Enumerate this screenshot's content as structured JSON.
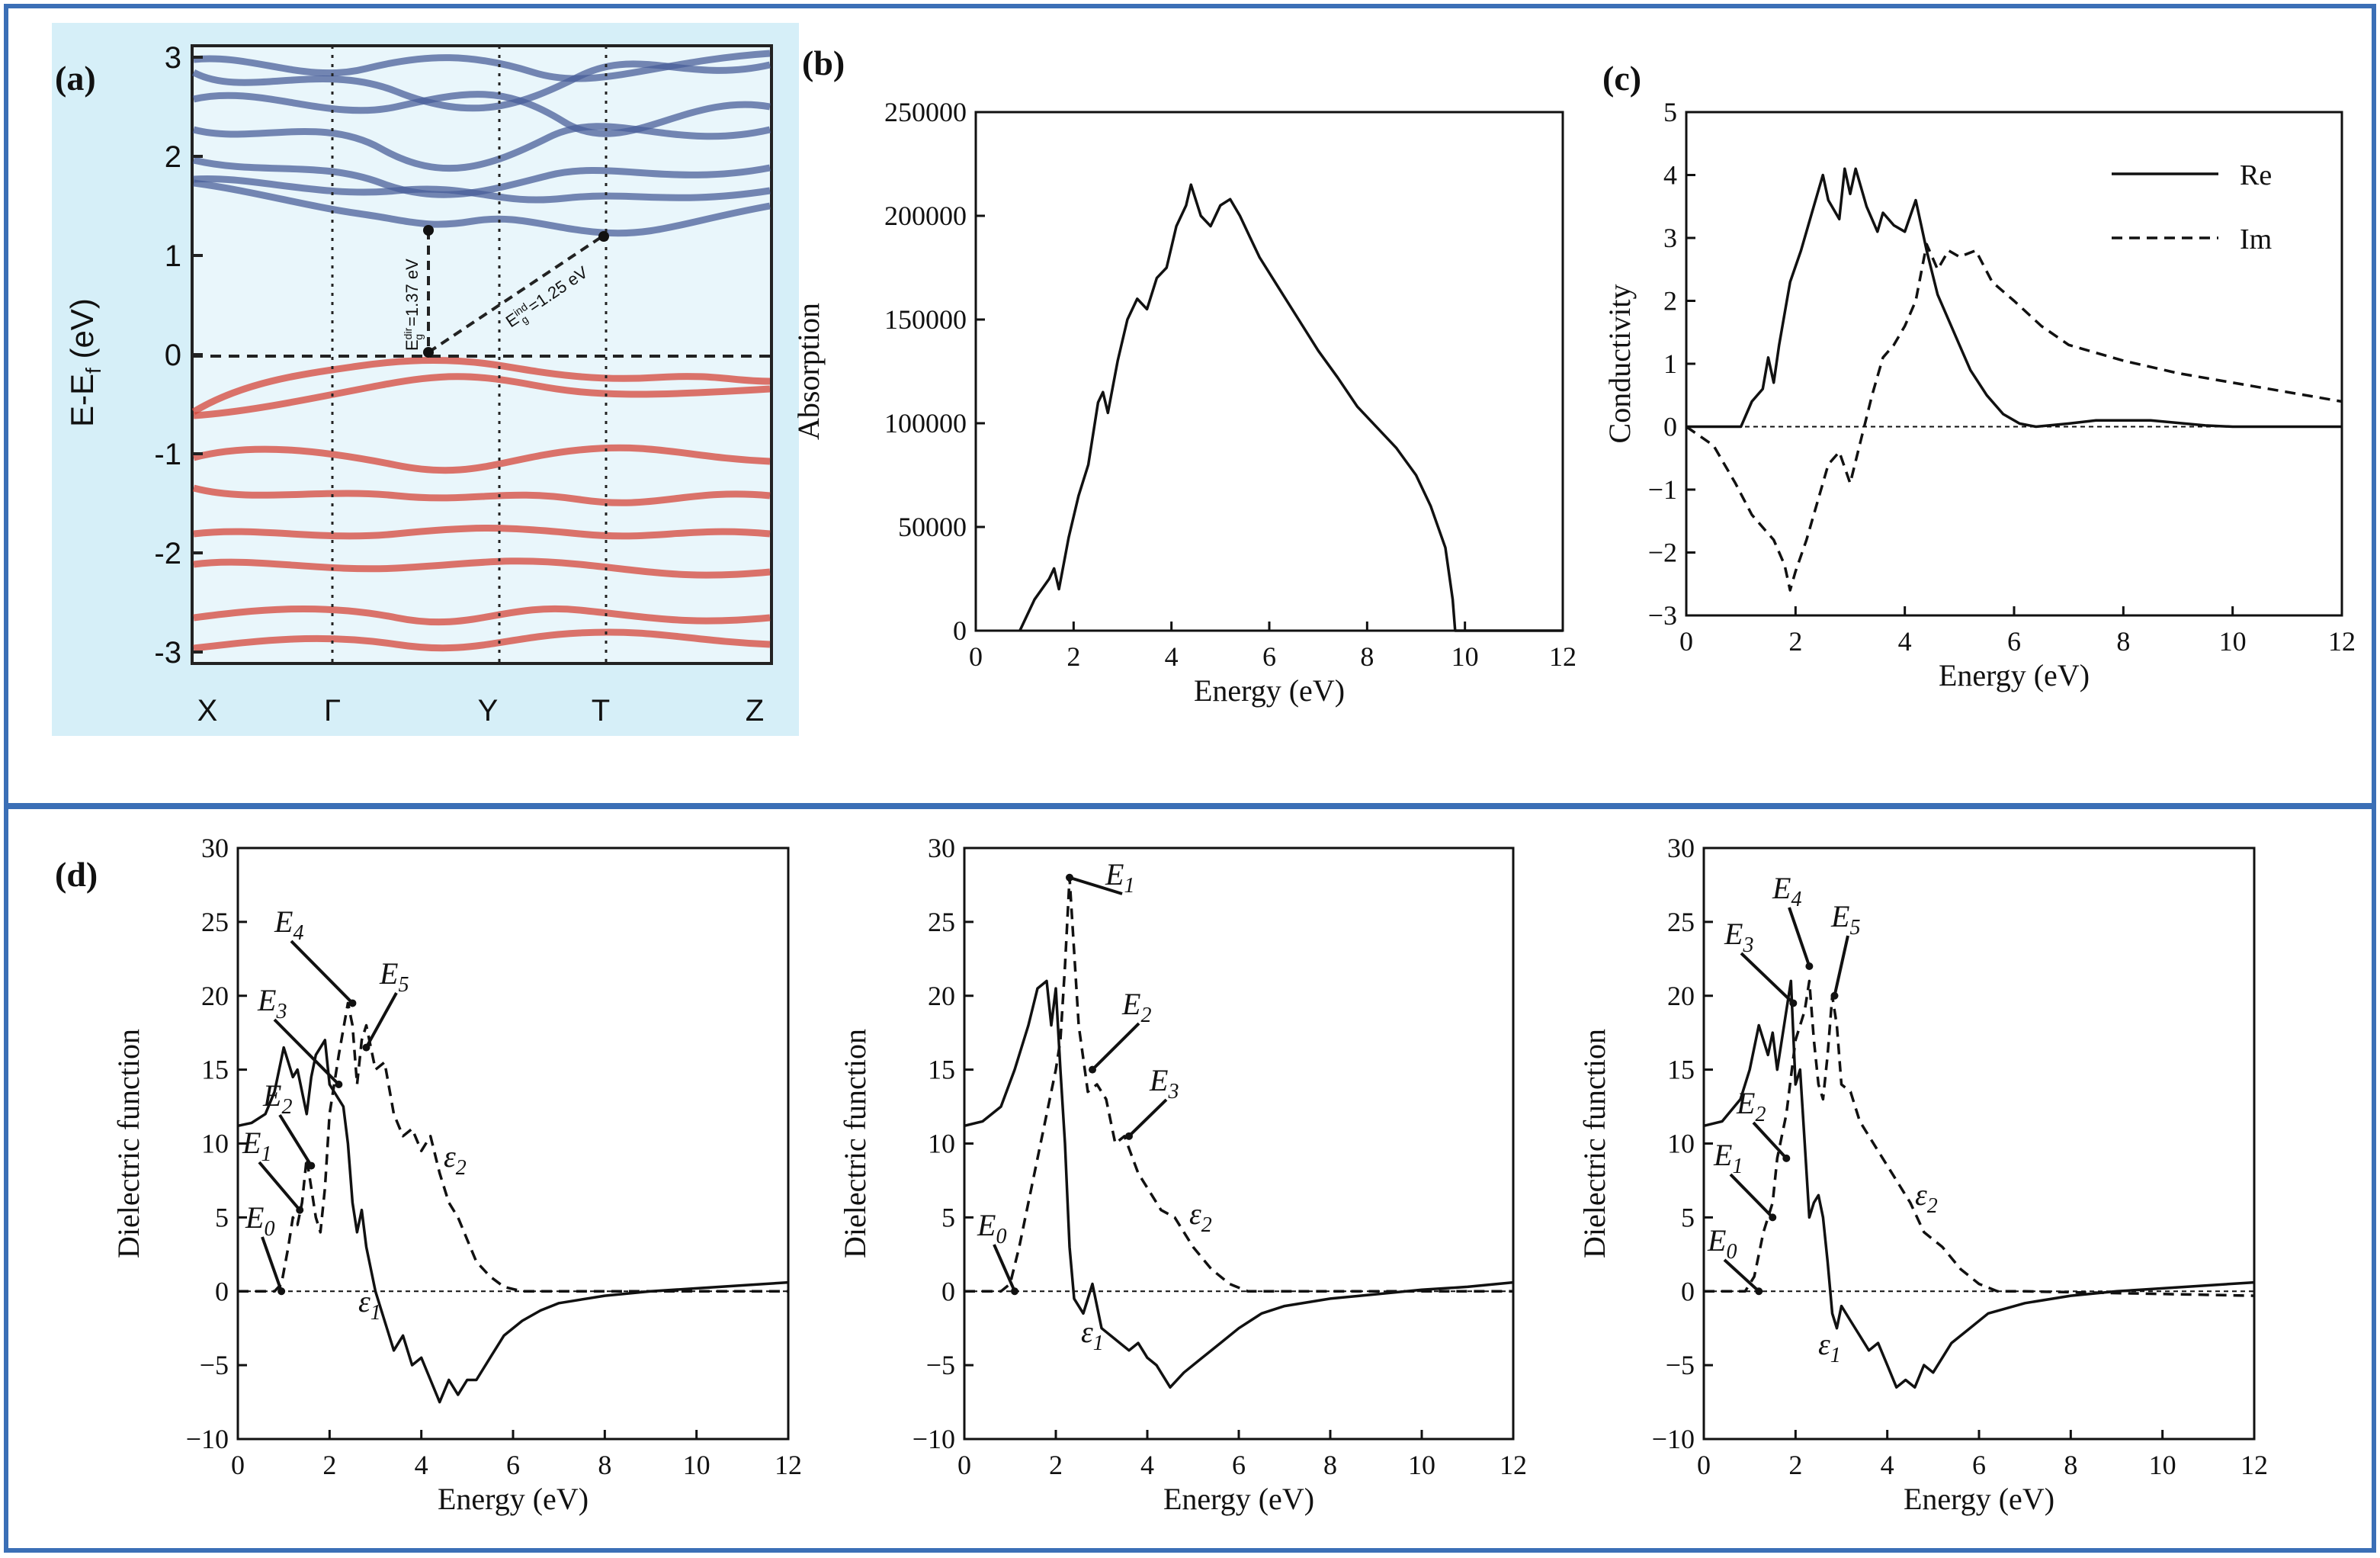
{
  "labels": {
    "a": "(a)",
    "b": "(b)",
    "c": "(c)",
    "d": "(d)"
  },
  "colors": {
    "frame": "#3b6fb6",
    "band_bg": "#d6eff8",
    "conduction": "#4a5f9a",
    "valence": "#d4453a",
    "line": "#111111"
  },
  "band_structure": {
    "ylabel": "E-E_f (eV)",
    "ylabel_main": "E-E",
    "ylabel_sub": "f",
    "ylabel_tail": " (eV)",
    "yticks": [
      "3",
      "2",
      "1",
      "0",
      "-1",
      "-2",
      "-3"
    ],
    "kpoints": [
      "X",
      "Γ",
      "Y",
      "T",
      "Z"
    ],
    "gap_direct": "E",
    "gap_direct_sup": "dir",
    "gap_direct_sub": "g",
    "gap_direct_val": "=1.37 eV",
    "gap_indirect": "E",
    "gap_indirect_sup": "ind",
    "gap_indirect_sub": "g",
    "gap_indirect_val": "=1.25 eV"
  },
  "chart_data": [
    {
      "id": "b",
      "type": "line",
      "xlabel": "Energy (eV)",
      "ylabel": "Absorption",
      "xlim": [
        0,
        12
      ],
      "ylim": [
        0,
        250000
      ],
      "xticks": [
        0,
        2,
        4,
        6,
        8,
        10,
        12
      ],
      "yticks": [
        0,
        50000,
        100000,
        150000,
        200000,
        250000
      ],
      "series": [
        {
          "name": "Absorption",
          "style": "solid",
          "x": [
            0.9,
            1.2,
            1.5,
            1.6,
            1.7,
            1.9,
            2.1,
            2.3,
            2.5,
            2.6,
            2.7,
            2.9,
            3.1,
            3.3,
            3.5,
            3.7,
            3.9,
            4.1,
            4.3,
            4.4,
            4.6,
            4.8,
            5.0,
            5.2,
            5.4,
            5.6,
            5.8,
            6.2,
            6.6,
            7.0,
            7.4,
            7.8,
            8.2,
            8.6,
            9.0,
            9.3,
            9.6,
            9.75,
            9.8,
            12.0
          ],
          "y": [
            0,
            15000,
            25000,
            30000,
            20000,
            45000,
            65000,
            80000,
            110000,
            115000,
            105000,
            130000,
            150000,
            160000,
            155000,
            170000,
            175000,
            195000,
            205000,
            215000,
            200000,
            195000,
            205000,
            208000,
            200000,
            190000,
            180000,
            165000,
            150000,
            135000,
            122000,
            108000,
            98000,
            88000,
            75000,
            60000,
            40000,
            15000,
            0,
            0
          ]
        }
      ]
    },
    {
      "id": "c",
      "type": "line",
      "xlabel": "Energy (eV)",
      "ylabel": "Conductivity",
      "xlim": [
        0,
        12
      ],
      "ylim": [
        -3,
        5
      ],
      "xticks": [
        0,
        2,
        4,
        6,
        8,
        10,
        12
      ],
      "yticks": [
        -3,
        -2,
        -1,
        0,
        1,
        2,
        3,
        4,
        5
      ],
      "legend": [
        "Re",
        "Im"
      ],
      "series": [
        {
          "name": "Re",
          "style": "solid",
          "x": [
            0,
            1.0,
            1.2,
            1.4,
            1.5,
            1.6,
            1.7,
            1.9,
            2.1,
            2.3,
            2.5,
            2.6,
            2.8,
            2.9,
            3.0,
            3.1,
            3.3,
            3.5,
            3.6,
            3.8,
            4.0,
            4.2,
            4.3,
            4.4,
            4.6,
            4.8,
            5.0,
            5.2,
            5.5,
            5.8,
            6.1,
            6.4,
            7.0,
            7.5,
            8.5,
            9.5,
            10,
            12
          ],
          "y": [
            0,
            0,
            0.4,
            0.6,
            1.1,
            0.7,
            1.3,
            2.3,
            2.8,
            3.4,
            4.0,
            3.6,
            3.3,
            4.1,
            3.7,
            4.1,
            3.5,
            3.1,
            3.4,
            3.2,
            3.1,
            3.6,
            3.2,
            2.8,
            2.1,
            1.7,
            1.3,
            0.9,
            0.5,
            0.2,
            0.05,
            0,
            0.05,
            0.1,
            0.1,
            0.02,
            0,
            0
          ]
        },
        {
          "name": "Im",
          "style": "dashed",
          "x": [
            0,
            0.5,
            0.9,
            1.2,
            1.4,
            1.6,
            1.8,
            1.9,
            2.0,
            2.2,
            2.4,
            2.6,
            2.8,
            3.0,
            3.2,
            3.4,
            3.6,
            3.8,
            4.0,
            4.2,
            4.4,
            4.6,
            4.8,
            5.0,
            5.3,
            5.6,
            6.0,
            6.5,
            7.0,
            8.0,
            9.0,
            10.0,
            11.0,
            12.0
          ],
          "y": [
            0,
            -0.3,
            -0.9,
            -1.4,
            -1.6,
            -1.8,
            -2.2,
            -2.6,
            -2.3,
            -1.8,
            -1.2,
            -0.6,
            -0.4,
            -0.9,
            -0.2,
            0.5,
            1.1,
            1.3,
            1.6,
            2.0,
            2.9,
            2.5,
            2.8,
            2.7,
            2.8,
            2.3,
            2.0,
            1.6,
            1.3,
            1.05,
            0.85,
            0.7,
            0.55,
            0.4
          ]
        }
      ]
    },
    {
      "id": "d1",
      "type": "line",
      "xlabel": "Energy (eV)",
      "ylabel": "Dielectric function",
      "xlim": [
        0,
        12
      ],
      "ylim": [
        -10,
        30
      ],
      "xticks": [
        0,
        2,
        4,
        6,
        8,
        10,
        12
      ],
      "yticks": [
        -10,
        -5,
        0,
        5,
        10,
        15,
        20,
        25,
        30
      ],
      "series": [
        {
          "name": "ε1",
          "style": "solid",
          "x": [
            0,
            0.3,
            0.6,
            0.8,
            1.0,
            1.2,
            1.3,
            1.5,
            1.6,
            1.7,
            1.9,
            2.0,
            2.2,
            2.3,
            2.4,
            2.5,
            2.6,
            2.7,
            2.8,
            3.0,
            3.2,
            3.4,
            3.6,
            3.8,
            4.0,
            4.2,
            4.4,
            4.6,
            4.8,
            5.0,
            5.2,
            5.5,
            5.8,
            6.2,
            6.6,
            7.0,
            8.0,
            9.0,
            10.0,
            11.0,
            12.0
          ],
          "y": [
            11.2,
            11.4,
            12,
            13.5,
            16.5,
            14.5,
            15,
            12,
            14.5,
            16,
            17,
            14,
            13,
            12.5,
            10,
            6,
            4,
            5.5,
            3,
            0,
            -2,
            -4,
            -3,
            -5,
            -4.5,
            -6,
            -7.5,
            -6,
            -7,
            -6,
            -6,
            -4.5,
            -3,
            -2,
            -1.3,
            -0.8,
            -0.3,
            0,
            0.2,
            0.4,
            0.6
          ]
        },
        {
          "name": "ε2",
          "style": "dashed",
          "x": [
            0,
            0.8,
            0.95,
            1.1,
            1.2,
            1.3,
            1.4,
            1.5,
            1.6,
            1.7,
            1.8,
            1.9,
            2.0,
            2.2,
            2.4,
            2.5,
            2.6,
            2.7,
            2.8,
            2.9,
            3.0,
            3.2,
            3.4,
            3.6,
            3.8,
            4.0,
            4.2,
            4.4,
            4.6,
            4.8,
            5.0,
            5.2,
            5.5,
            5.8,
            6.2,
            7.0,
            8.0,
            12.0
          ],
          "y": [
            0,
            0,
            0.5,
            3,
            5,
            4.5,
            6,
            9,
            7,
            5,
            4,
            7,
            12,
            16,
            19.5,
            18,
            14,
            17,
            18,
            16.5,
            15,
            15.5,
            12,
            10.5,
            11,
            9.5,
            10.5,
            8,
            6,
            5,
            3.5,
            2,
            1,
            0.3,
            0,
            0,
            0,
            0
          ]
        }
      ],
      "annotations": [
        "E0",
        "E1",
        "E2",
        "E3",
        "E4",
        "E5",
        "ε1",
        "ε2"
      ]
    },
    {
      "id": "d2",
      "type": "line",
      "xlabel": "Energy (eV)",
      "ylabel": "Dielectric function",
      "xlim": [
        0,
        12
      ],
      "ylim": [
        -10,
        30
      ],
      "xticks": [
        0,
        2,
        4,
        6,
        8,
        10,
        12
      ],
      "yticks": [
        -10,
        -5,
        0,
        5,
        10,
        15,
        20,
        25,
        30
      ],
      "series": [
        {
          "name": "ε1",
          "style": "solid",
          "x": [
            0,
            0.4,
            0.8,
            1.1,
            1.4,
            1.6,
            1.8,
            1.9,
            2.0,
            2.1,
            2.2,
            2.3,
            2.4,
            2.6,
            2.8,
            3.0,
            3.2,
            3.4,
            3.6,
            3.8,
            4.0,
            4.2,
            4.5,
            4.8,
            5.2,
            5.6,
            6.0,
            6.5,
            7.0,
            8.0,
            9.0,
            10.0,
            11.0,
            12.0
          ],
          "y": [
            11.2,
            11.5,
            12.5,
            15,
            18,
            20.5,
            21,
            18,
            20.5,
            15,
            10,
            3,
            -0.5,
            -1.5,
            0.5,
            -2.5,
            -3,
            -3.5,
            -4,
            -3.5,
            -4.5,
            -5,
            -6.5,
            -5.5,
            -4.5,
            -3.5,
            -2.5,
            -1.5,
            -1,
            -0.5,
            -0.2,
            0.1,
            0.3,
            0.6
          ]
        },
        {
          "name": "ε2",
          "style": "dashed",
          "x": [
            0,
            0.8,
            1.0,
            1.2,
            1.4,
            1.6,
            1.8,
            2.0,
            2.1,
            2.2,
            2.3,
            2.4,
            2.5,
            2.7,
            2.9,
            3.1,
            3.3,
            3.5,
            3.8,
            4.0,
            4.3,
            4.6,
            5.0,
            5.4,
            5.8,
            6.2,
            7.0,
            12.0
          ],
          "y": [
            0,
            0,
            0.5,
            3,
            6,
            9,
            12,
            15,
            17,
            22,
            28,
            23,
            18,
            13.5,
            14,
            13,
            10,
            10.5,
            8,
            7,
            5.5,
            5,
            3,
            1.5,
            0.5,
            0,
            0,
            0
          ]
        }
      ],
      "annotations": [
        "E0",
        "E1",
        "E2",
        "E3",
        "ε1",
        "ε2"
      ]
    },
    {
      "id": "d3",
      "type": "line",
      "xlabel": "Energy (eV)",
      "ylabel": "Dielectric function",
      "xlim": [
        0,
        12
      ],
      "ylim": [
        -10,
        30
      ],
      "xticks": [
        0,
        2,
        4,
        6,
        8,
        10,
        12
      ],
      "yticks": [
        -10,
        -5,
        0,
        5,
        10,
        15,
        20,
        25,
        30
      ],
      "series": [
        {
          "name": "ε1",
          "style": "solid",
          "x": [
            0,
            0.4,
            0.8,
            1.0,
            1.2,
            1.4,
            1.5,
            1.6,
            1.8,
            1.9,
            2.0,
            2.1,
            2.2,
            2.3,
            2.4,
            2.5,
            2.6,
            2.7,
            2.8,
            2.9,
            3.0,
            3.2,
            3.4,
            3.6,
            3.8,
            4.0,
            4.2,
            4.4,
            4.6,
            4.8,
            5.0,
            5.4,
            5.8,
            6.2,
            7.0,
            8.0,
            9.0,
            10.0,
            11.0,
            12.0
          ],
          "y": [
            11.2,
            11.5,
            13,
            15,
            18,
            16,
            17.5,
            15,
            19,
            21,
            14,
            15,
            10,
            5,
            6,
            6.5,
            5,
            2,
            -1.5,
            -2.5,
            -1,
            -2,
            -3,
            -4,
            -3.5,
            -5,
            -6.5,
            -6,
            -6.5,
            -5,
            -5.5,
            -3.5,
            -2.5,
            -1.5,
            -0.8,
            -0.3,
            0,
            0.2,
            0.4,
            0.6
          ]
        },
        {
          "name": "ε2",
          "style": "dashed",
          "x": [
            0,
            0.9,
            1.1,
            1.3,
            1.5,
            1.6,
            1.8,
            2.0,
            2.2,
            2.3,
            2.4,
            2.5,
            2.6,
            2.7,
            2.8,
            2.9,
            3.0,
            3.2,
            3.4,
            3.6,
            3.8,
            4.0,
            4.2,
            4.5,
            4.8,
            5.2,
            5.6,
            6.0,
            6.4,
            7.0,
            12.0
          ],
          "y": [
            0,
            0,
            1,
            4,
            6,
            9,
            12,
            17,
            19,
            21,
            17,
            14,
            13,
            16,
            20,
            18,
            14,
            13.5,
            11.5,
            10.5,
            9.5,
            8.5,
            7.5,
            6,
            4,
            3,
            1.5,
            0.5,
            0,
            0,
            -0.3
          ]
        }
      ],
      "annotations": [
        "E0",
        "E1",
        "E2",
        "E3",
        "E4",
        "E5",
        "ε1",
        "ε2"
      ]
    }
  ]
}
